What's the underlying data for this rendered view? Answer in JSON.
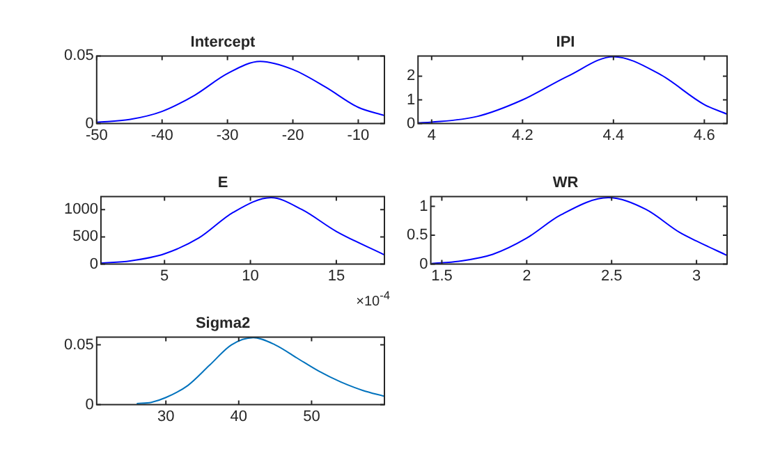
{
  "chart_data": [
    {
      "type": "line",
      "title": "Intercept",
      "x": [
        -50,
        -45,
        -40,
        -35,
        -30,
        -25,
        -20,
        -15,
        -10,
        -6
      ],
      "series": [
        {
          "color": "#0000ff",
          "values": [
            0.001,
            0.003,
            0.009,
            0.021,
            0.037,
            0.046,
            0.04,
            0.027,
            0.012,
            0.006
          ]
        }
      ],
      "xlim": [
        -50,
        -6
      ],
      "ylim": [
        0,
        0.05
      ],
      "xticks": [
        -50,
        -40,
        -30,
        -20,
        -10
      ],
      "yticks": [
        0,
        0.05
      ]
    },
    {
      "type": "line",
      "title": "IPI",
      "x": [
        3.97,
        4.0,
        4.1,
        4.2,
        4.3,
        4.4,
        4.5,
        4.6,
        4.65
      ],
      "series": [
        {
          "color": "#0000ff",
          "values": [
            0.03,
            0.06,
            0.3,
            1.0,
            2.0,
            2.82,
            2.1,
            0.8,
            0.4
          ]
        }
      ],
      "xlim": [
        3.97,
        4.65
      ],
      "ylim": [
        0,
        2.85
      ],
      "xticks": [
        4,
        4.2,
        4.4,
        4.6
      ],
      "yticks": [
        0,
        1,
        2
      ]
    },
    {
      "type": "line",
      "title": "E",
      "x": [
        1.3,
        3,
        5,
        7,
        9,
        11.2,
        13,
        15,
        17.8
      ],
      "series": [
        {
          "color": "#0000ff",
          "values": [
            20,
            60,
            190,
            480,
            950,
            1220,
            1000,
            600,
            170
          ]
        }
      ],
      "xlim": [
        1.3,
        17.8
      ],
      "ylim": [
        0,
        1240
      ],
      "xticks": [
        5,
        10,
        15
      ],
      "yticks": [
        0,
        500,
        1000
      ],
      "annotations": [
        "×10$^{-4}$"
      ]
    },
    {
      "type": "line",
      "title": "WR",
      "x": [
        1.44,
        1.6,
        1.8,
        2.0,
        2.2,
        2.48,
        2.7,
        2.9,
        3.0,
        3.18
      ],
      "series": [
        {
          "color": "#0000ff",
          "values": [
            0.01,
            0.05,
            0.17,
            0.45,
            0.85,
            1.15,
            0.95,
            0.55,
            0.4,
            0.15
          ]
        }
      ],
      "xlim": [
        1.435,
        3.18
      ],
      "ylim": [
        0,
        1.17
      ],
      "xticks": [
        1.5,
        2,
        2.5,
        3
      ],
      "yticks": [
        0,
        0.5,
        1
      ]
    },
    {
      "type": "line",
      "title": "Sigma2",
      "x": [
        26,
        28,
        30,
        33,
        36,
        39,
        42,
        45,
        48,
        51,
        54,
        57,
        60
      ],
      "series": [
        {
          "color": "#0072bd",
          "values": [
            0.001,
            0.002,
            0.006,
            0.016,
            0.033,
            0.05,
            0.056,
            0.05,
            0.039,
            0.028,
            0.019,
            0.012,
            0.007
          ]
        }
      ],
      "xlim": [
        20.5,
        60
      ],
      "ylim": [
        0,
        0.0565
      ],
      "xticks": [
        30,
        40,
        50
      ],
      "yticks": [
        0,
        0.05
      ]
    }
  ]
}
